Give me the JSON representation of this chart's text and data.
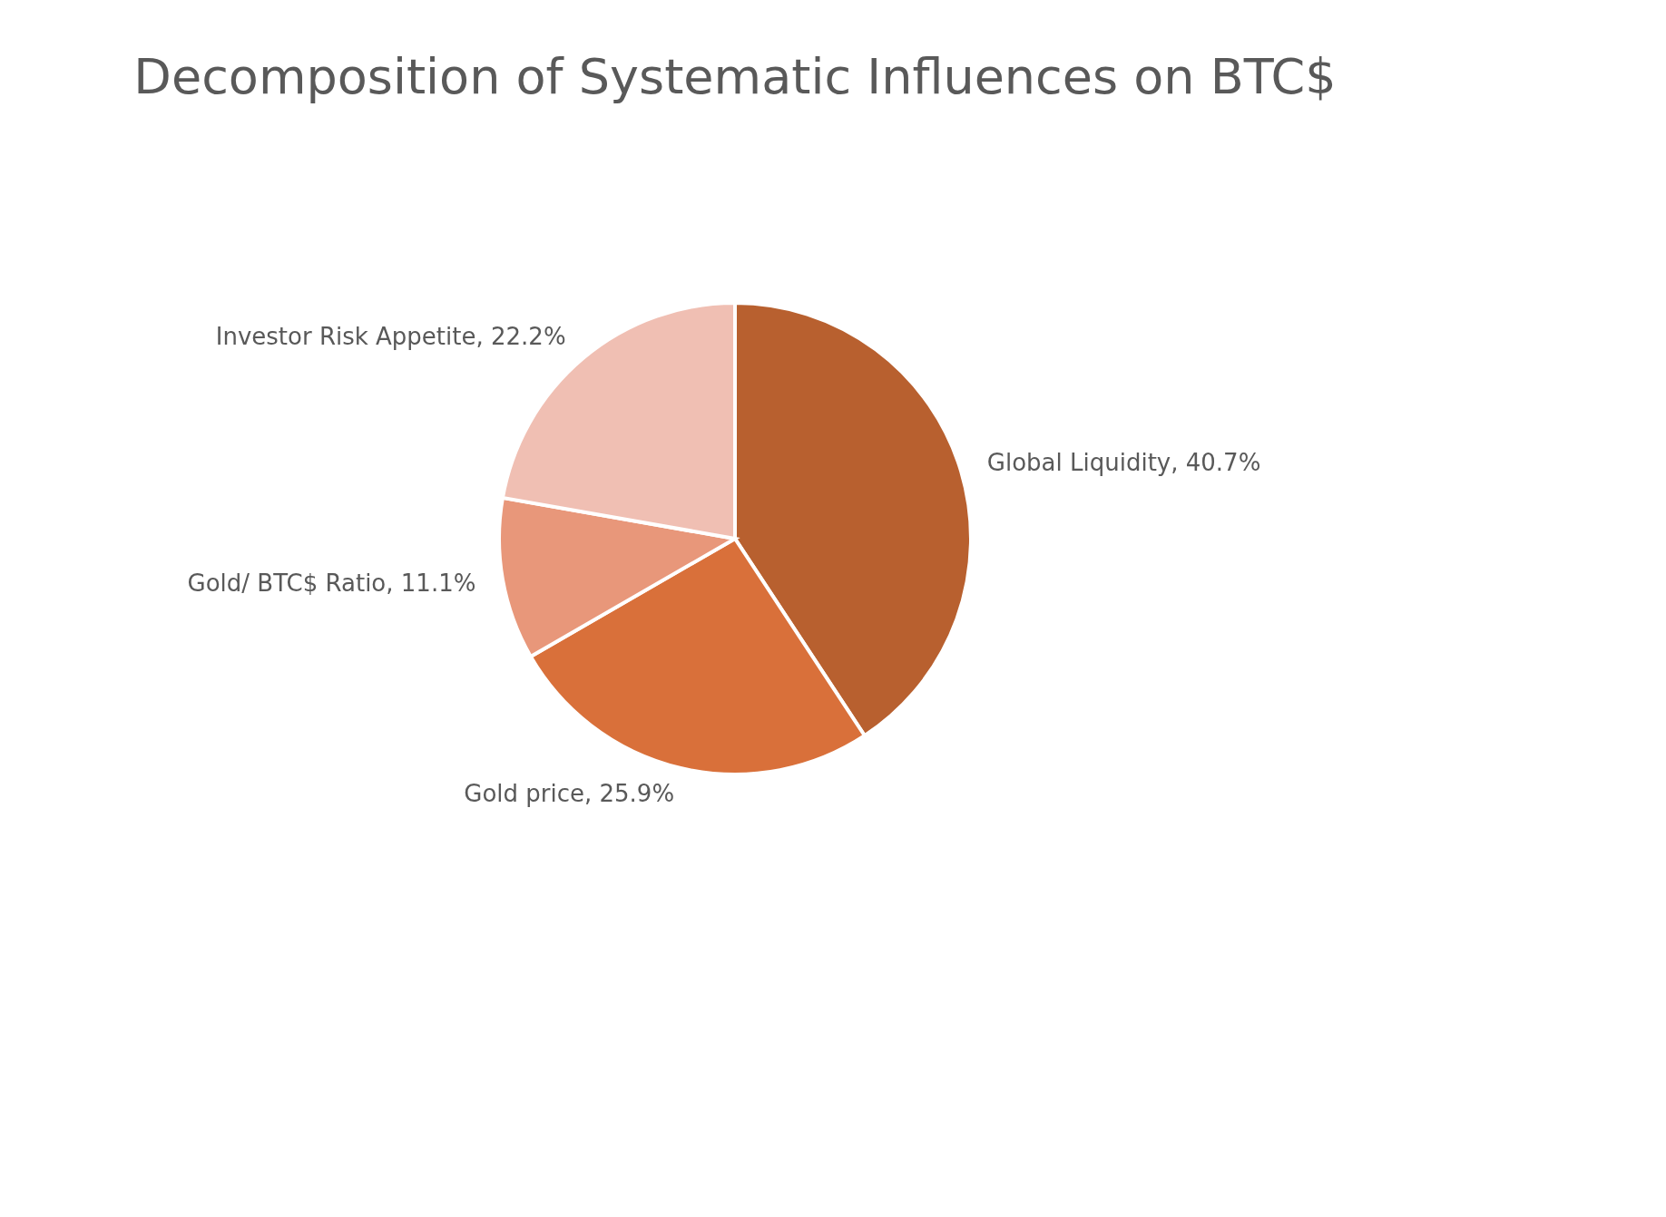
{
  "chart_data": {
    "type": "pie",
    "title": "Decomposition of Systematic Influences on BTC$",
    "categories": [
      "Global Liquidity",
      "Gold price",
      "Gold/ BTC$ Ratio",
      "Investor Risk Appetite"
    ],
    "values": [
      40.7,
      25.9,
      11.1,
      22.2
    ],
    "value_labels": [
      "40.7%",
      "25.9%",
      "11.1%",
      "22.2%"
    ],
    "colors": [
      "#b8602f",
      "#d9703a",
      "#e8977a",
      "#f0bfb3"
    ],
    "legend": false
  }
}
